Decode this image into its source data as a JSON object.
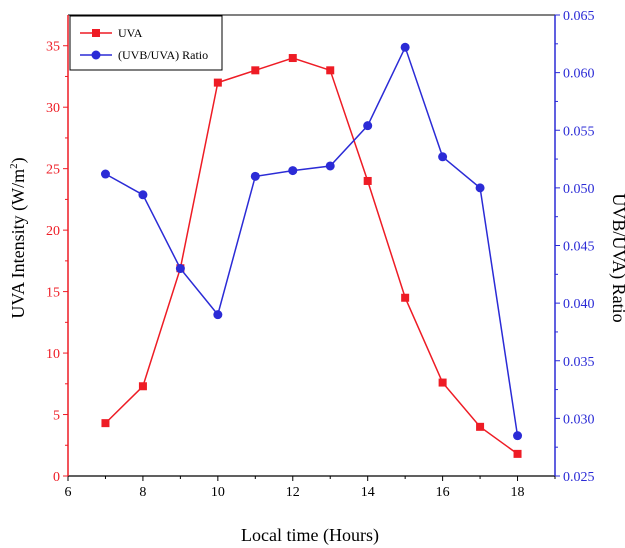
{
  "chart_data": {
    "type": "line",
    "x": [
      7,
      8,
      9,
      10,
      11,
      12,
      13,
      14,
      15,
      16,
      17,
      18
    ],
    "xlabel": "Local time (Hours)",
    "xlim": [
      6,
      19
    ],
    "xticks": [
      6,
      8,
      10,
      12,
      14,
      16,
      18
    ],
    "ylabel": "UVA Intensity (W/m",
    "ylabel_sup": "2",
    "ylabel_end": ")",
    "ylim": [
      0,
      37.5
    ],
    "yticks": [
      0,
      5,
      10,
      15,
      20,
      25,
      30,
      35
    ],
    "y2label": "UVB/UVA) Ratio",
    "y2lim": [
      0.025,
      0.065
    ],
    "y2ticks": [
      "0.025",
      "0.030",
      "0.035",
      "0.040",
      "0.045",
      "0.050",
      "0.055",
      "0.060",
      "0.065"
    ],
    "legend_position": "top-left",
    "series": [
      {
        "name": "UVA",
        "axis": "left",
        "marker": "square",
        "color": "#ee1c25",
        "values": [
          4.3,
          7.3,
          16.9,
          32.0,
          33.0,
          34.0,
          33.0,
          24.0,
          14.5,
          7.6,
          4.0,
          1.8
        ]
      },
      {
        "name": "(UVB/UVA) Ratio",
        "axis": "right",
        "marker": "circle",
        "color": "#2b2bd6",
        "values": [
          0.0512,
          0.0494,
          0.043,
          0.039,
          0.051,
          0.0515,
          0.0519,
          0.0554,
          0.0622,
          0.0527,
          0.05,
          0.0285
        ]
      }
    ],
    "left_axis_color": "#ee1c25",
    "right_axis_color": "#2b2bd6",
    "grid": false
  }
}
